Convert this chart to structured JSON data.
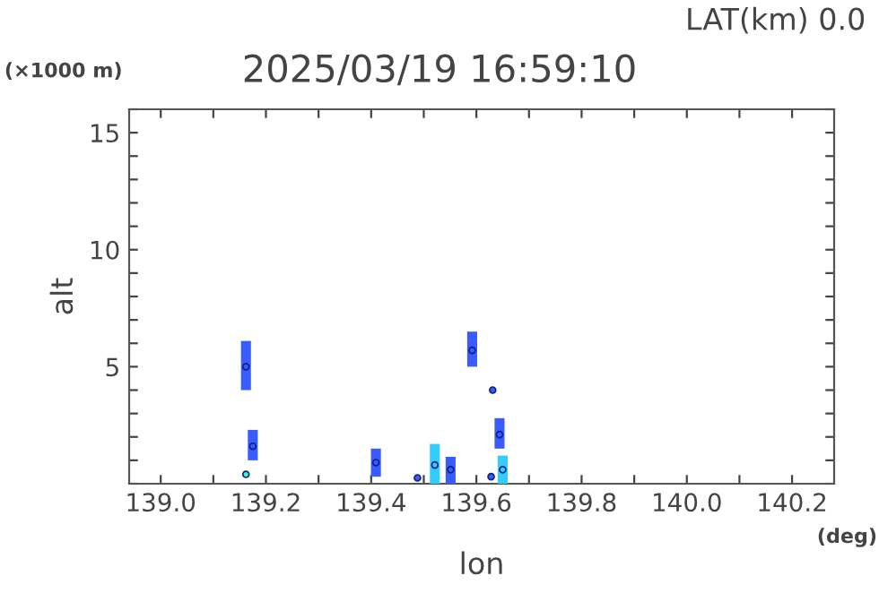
{
  "chart_data": {
    "type": "scatter",
    "title": "2025/03/19 16:59:10",
    "subtitle": "LAT(km) 0.0",
    "xlabel": "lon",
    "ylabel": "alt",
    "annotations": [
      "(×1000 m)",
      "(deg)"
    ],
    "xlim": [
      138.94,
      140.28
    ],
    "ylim": [
      0,
      16
    ],
    "xticks": [
      {
        "value": 139.0,
        "label": "139.0"
      },
      {
        "value": 139.1,
        "label": null
      },
      139.2,
      {
        "value": 139.3,
        "label": null
      },
      139.4,
      {
        "value": 139.5,
        "label": null
      },
      139.6,
      {
        "value": 139.7,
        "label": null
      },
      139.8,
      {
        "value": 139.9,
        "label": null
      },
      {
        "value": 140.0,
        "label": "140.0"
      },
      {
        "value": 140.1,
        "label": null
      },
      140.2
    ],
    "yticks": [
      {
        "value": 0,
        "label": null
      },
      {
        "value": 1,
        "label": null
      },
      {
        "value": 2,
        "label": null
      },
      {
        "value": 3,
        "label": null
      },
      {
        "value": 4,
        "label": null
      },
      5,
      {
        "value": 6,
        "label": null
      },
      {
        "value": 7,
        "label": null
      },
      {
        "value": 8,
        "label": null
      },
      {
        "value": 9,
        "label": null
      },
      10,
      {
        "value": 11,
        "label": null
      },
      {
        "value": 12,
        "label": null
      },
      {
        "value": 13,
        "label": null
      },
      {
        "value": 14,
        "label": null
      },
      15,
      {
        "value": 16,
        "label": null
      }
    ],
    "grid": false,
    "legend": false,
    "series": [
      {
        "color": "#3a5cff",
        "x": [
          139.162,
          139.175,
          139.409,
          139.488,
          139.551,
          139.592,
          139.631,
          139.644,
          139.628
        ],
        "values": [
          5.0,
          1.6,
          0.9,
          0.25,
          0.6,
          5.7,
          4.0,
          2.1,
          0.3
        ],
        "errors": [
          [
            4.0,
            6.1
          ],
          [
            1.0,
            2.3
          ],
          [
            0.3,
            1.5
          ],
          null,
          [
            0.0,
            1.15
          ],
          [
            5.0,
            6.5
          ],
          null,
          [
            1.5,
            2.8
          ],
          null
        ]
      },
      {
        "color": "#33ccff",
        "x": [
          139.521,
          139.65
        ],
        "values": [
          0.8,
          0.6
        ],
        "errors": [
          [
            0.0,
            1.7
          ],
          [
            0.0,
            1.2
          ]
        ]
      },
      {
        "color": "#33ffbb",
        "x": [
          139.162
        ],
        "values": [
          0.4
        ]
      }
    ]
  }
}
